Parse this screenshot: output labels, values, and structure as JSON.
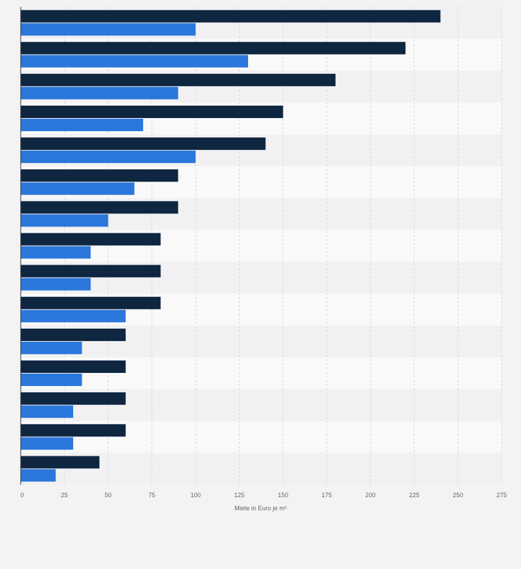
{
  "chart_data": {
    "type": "bar",
    "orientation": "horizontal",
    "categories": [
      "",
      "",
      "",
      "",
      "",
      "",
      "",
      "",
      "",
      "",
      "",
      "",
      "",
      "",
      ""
    ],
    "series": [
      {
        "color": "#0f2641",
        "values": [
          240,
          220,
          180,
          150,
          140,
          90,
          90,
          80,
          80,
          80,
          60,
          60,
          60,
          60,
          45
        ]
      },
      {
        "color": "#2b77db",
        "values": [
          100,
          130,
          90,
          70,
          100,
          65,
          50,
          40,
          40,
          60,
          35,
          35,
          30,
          30,
          20
        ]
      }
    ],
    "xlim": [
      0,
      275
    ],
    "x_ticks": [
      0,
      25,
      50,
      75,
      100,
      125,
      150,
      175,
      200,
      225,
      250,
      275
    ],
    "x_tick_labels": [
      "0",
      "25",
      "50",
      "75",
      "100",
      "125",
      "150",
      "175",
      "200",
      "225",
      "250",
      "275"
    ],
    "xlabel": "Miete in Euro je m²",
    "ylabel": "",
    "title": "",
    "grid": true,
    "legend": "none"
  },
  "colors": {
    "background": "#f3f3f5",
    "band_light": "#f9f9fa",
    "band_dark": "#f1f1f3",
    "grid": "#d6d6da",
    "axis_text": "#666666"
  }
}
